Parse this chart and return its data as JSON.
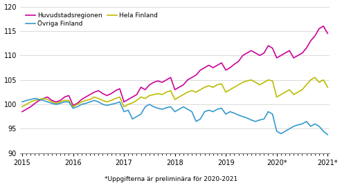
{
  "subtitle": "*Uppgifterna är preliminära för 2020-2021",
  "ylim": [
    90,
    120
  ],
  "yticks": [
    90,
    95,
    100,
    105,
    110,
    115,
    120
  ],
  "xtick_labels": [
    "2015",
    "2016",
    "2017",
    "2018",
    "2019",
    "2020*",
    "2021*"
  ],
  "xtick_positions": [
    0,
    12,
    24,
    36,
    48,
    60,
    72
  ],
  "color_huvud": "#cc0099",
  "color_hela": "#bbbb00",
  "color_ovriga": "#3399cc",
  "label_huvud": "Huvudstadsregionen",
  "label_hela": "Hela Finland",
  "label_ovriga": "Övriga Finland",
  "line_width": 1.2,
  "grid_color": "#cccccc",
  "huvud": [
    98.5,
    99.0,
    99.5,
    100.2,
    100.8,
    101.2,
    101.5,
    100.8,
    100.5,
    100.8,
    101.5,
    101.8,
    99.8,
    100.2,
    101.0,
    101.5,
    102.0,
    102.5,
    102.8,
    102.2,
    101.8,
    102.2,
    102.8,
    103.2,
    100.5,
    101.0,
    101.5,
    102.0,
    103.5,
    103.0,
    104.0,
    104.5,
    104.8,
    104.5,
    105.0,
    105.5,
    103.0,
    103.5,
    104.0,
    105.0,
    105.5,
    106.0,
    107.0,
    107.5,
    108.0,
    107.5,
    108.0,
    108.5,
    107.0,
    107.5,
    108.2,
    108.8,
    110.0,
    110.5,
    111.0,
    110.5,
    110.0,
    110.5,
    112.0,
    111.5,
    109.5,
    110.0,
    110.5,
    111.0,
    109.5,
    110.0,
    110.5,
    111.5,
    113.0,
    114.0,
    115.5,
    116.0,
    114.5
  ],
  "hela": [
    99.5,
    100.0,
    100.5,
    100.8,
    101.0,
    101.2,
    101.0,
    100.5,
    100.2,
    100.5,
    100.8,
    100.8,
    99.5,
    100.0,
    100.5,
    100.8,
    101.0,
    101.5,
    101.2,
    100.8,
    100.5,
    100.8,
    101.2,
    101.5,
    99.5,
    100.0,
    100.3,
    100.8,
    101.5,
    101.2,
    101.8,
    102.0,
    102.2,
    102.0,
    102.5,
    102.8,
    101.0,
    101.5,
    102.0,
    102.5,
    102.8,
    102.5,
    103.0,
    103.5,
    103.8,
    103.5,
    104.0,
    104.2,
    102.5,
    103.0,
    103.5,
    104.0,
    104.5,
    104.8,
    105.0,
    104.5,
    104.0,
    104.5,
    105.0,
    104.8,
    101.5,
    102.0,
    102.5,
    103.0,
    102.0,
    102.5,
    103.0,
    104.0,
    105.0,
    105.5,
    104.5,
    105.0,
    103.5
  ],
  "ovriga": [
    100.5,
    100.8,
    101.0,
    101.2,
    101.0,
    100.8,
    100.5,
    100.2,
    100.0,
    100.2,
    100.5,
    100.5,
    99.2,
    99.5,
    100.0,
    100.2,
    100.5,
    100.8,
    100.5,
    100.0,
    99.8,
    100.0,
    100.2,
    100.5,
    98.5,
    98.8,
    97.0,
    97.5,
    98.0,
    99.5,
    100.0,
    99.5,
    99.2,
    99.0,
    99.3,
    99.5,
    98.5,
    99.0,
    99.5,
    99.0,
    98.5,
    96.5,
    97.0,
    98.5,
    98.8,
    98.5,
    99.0,
    99.2,
    98.0,
    98.5,
    98.2,
    97.8,
    97.5,
    97.2,
    96.8,
    96.5,
    96.8,
    97.0,
    98.5,
    98.0,
    94.5,
    94.0,
    94.5,
    95.0,
    95.5,
    95.8,
    96.0,
    96.5,
    95.5,
    96.0,
    95.5,
    94.5,
    93.8
  ]
}
